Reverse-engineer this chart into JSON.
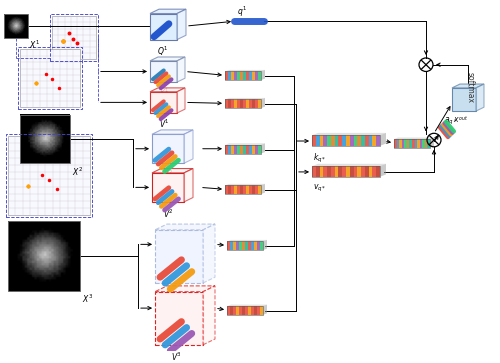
{
  "bg": "#ffffff",
  "strip_colors": [
    "#e74c3c",
    "#3498db",
    "#f39c12",
    "#9b59b6",
    "#2ecc71",
    "#e67e22",
    "#1abc9c",
    "#e74c3c",
    "#3498db",
    "#f39c12",
    "#9b59b6",
    "#2ecc71"
  ],
  "strip_colors_red": [
    "#e74c3c",
    "#c0392b",
    "#e74c3c",
    "#f39c12",
    "#e74c3c",
    "#c0392b",
    "#e74c3c",
    "#f39c12",
    "#e74c3c",
    "#c0392b",
    "#e74c3c",
    "#f39c12"
  ],
  "wide_colors": [
    "#e74c3c",
    "#3498db",
    "#f39c12",
    "#9b59b6",
    "#2ecc71",
    "#e67e22",
    "#1abc9c",
    "#e74c3c",
    "#3498db",
    "#f39c12",
    "#9b59b6",
    "#2ecc71",
    "#e67e22",
    "#1abc9c",
    "#e74c3c",
    "#3498db",
    "#f39c12",
    "#9b59b6"
  ],
  "wide_red": [
    "#e74c3c",
    "#c0392b",
    "#f39c12",
    "#e74c3c",
    "#c0392b",
    "#e74c3c",
    "#f39c12",
    "#c0392b",
    "#e74c3c",
    "#f39c12",
    "#c0392b",
    "#e74c3c",
    "#f39c12",
    "#e74c3c",
    "#c0392b",
    "#f39c12",
    "#e74c3c",
    "#c0392b"
  ],
  "pencil_a": [
    "#e74c3c",
    "#3498db",
    "#f39c12",
    "#9b59b6",
    "#2ecc71"
  ]
}
